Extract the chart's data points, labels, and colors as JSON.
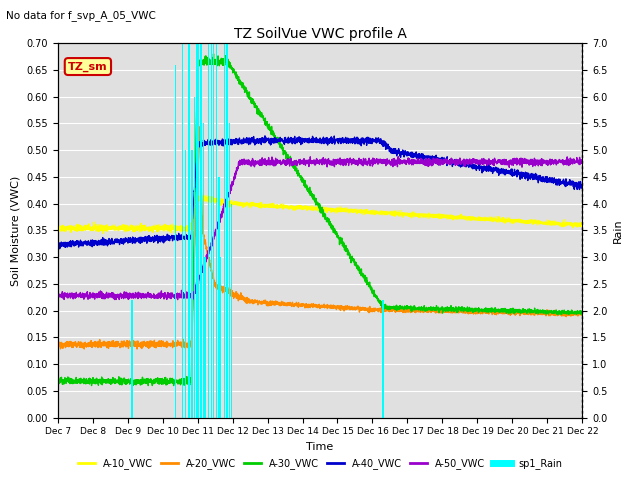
{
  "title": "TZ SoilVue VWC profile A",
  "subtitle": "No data for f_svp_A_05_VWC",
  "xlabel": "Time",
  "ylabel_left": "Soil Moisture (VWC)",
  "ylabel_right": "Rain",
  "ylim_left": [
    0.0,
    0.7
  ],
  "ylim_right": [
    0.0,
    7.0
  ],
  "xtick_labels": [
    "Dec 7",
    "Dec 8",
    "Dec 9",
    "Dec 10",
    "Dec 11",
    "Dec 12",
    "Dec 13",
    "Dec 14",
    "Dec 15",
    "Dec 16",
    "Dec 17",
    "Dec 18",
    "Dec 19",
    "Dec 20",
    "Dec 21",
    "Dec 22"
  ],
  "colors": {
    "A10": "#ffff00",
    "A20": "#ff8c00",
    "A30": "#00cc00",
    "A40": "#0000cc",
    "A50": "#9900cc",
    "rain": "#00ffff",
    "bg": "#e0e0e0",
    "tz_sm_box_bg": "#ffff99",
    "tz_sm_box_border": "#cc0000",
    "tz_sm_text": "#cc0000"
  },
  "legend_entries": [
    "A-10_VWC",
    "A-20_VWC",
    "A-30_VWC",
    "A-40_VWC",
    "A-50_VWC",
    "sp1_Rain"
  ],
  "tz_sm_label": "TZ_sm",
  "figsize": [
    6.4,
    4.8
  ],
  "dpi": 100
}
